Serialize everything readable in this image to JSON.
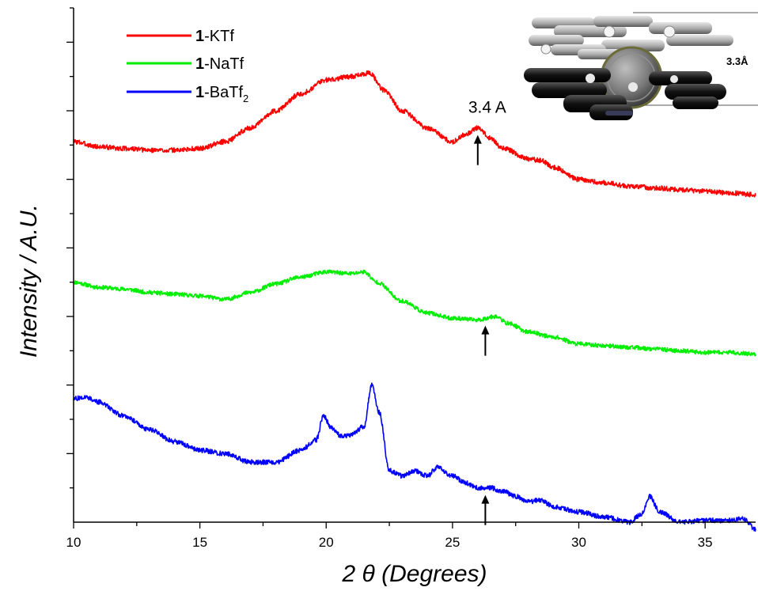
{
  "chart_data": {
    "type": "line",
    "xlabel_pre": "2 ",
    "xlabel_theta": "θ",
    "xlabel_post": " (Degrees)",
    "ylabel": "Intensity / A.U.",
    "xlim": [
      10,
      37
    ],
    "xticks": [
      10,
      15,
      20,
      25,
      30,
      35
    ],
    "x_minor_step": 2.5,
    "ylim": [
      0,
      15
    ],
    "y_major_step": 2,
    "y_minor_step": 1,
    "yticks_labeled": false,
    "grid": false,
    "legend_position": "top-left",
    "series": [
      {
        "key": "ktf",
        "bold": "1",
        "name_rest": "-KTf",
        "sub": "",
        "color": "#ff0000",
        "points": [
          [
            10,
            11.1
          ],
          [
            11,
            10.95
          ],
          [
            12,
            10.9
          ],
          [
            13,
            10.85
          ],
          [
            14,
            10.85
          ],
          [
            15,
            10.9
          ],
          [
            16,
            11.1
          ],
          [
            17,
            11.5
          ],
          [
            18,
            12.0
          ],
          [
            19,
            12.5
          ],
          [
            20,
            12.9
          ],
          [
            21,
            13.0
          ],
          [
            21.7,
            13.1
          ],
          [
            22.3,
            12.6
          ],
          [
            23,
            12.0
          ],
          [
            24,
            11.5
          ],
          [
            25,
            11.1
          ],
          [
            25.5,
            11.3
          ],
          [
            26,
            11.5
          ],
          [
            26.5,
            11.2
          ],
          [
            27,
            10.9
          ],
          [
            28,
            10.6
          ],
          [
            28.5,
            10.55
          ],
          [
            29,
            10.35
          ],
          [
            30,
            10.0
          ],
          [
            31,
            9.9
          ],
          [
            32,
            9.8
          ],
          [
            33,
            9.75
          ],
          [
            34,
            9.7
          ],
          [
            35,
            9.65
          ],
          [
            36,
            9.6
          ],
          [
            37,
            9.55
          ]
        ],
        "noise": 0.07,
        "seed": 3
      },
      {
        "key": "natf",
        "bold": "1",
        "name_rest": "-NaTf",
        "sub": "",
        "color": "#00ee00",
        "points": [
          [
            10,
            7.0
          ],
          [
            11,
            6.85
          ],
          [
            12,
            6.8
          ],
          [
            13,
            6.7
          ],
          [
            14,
            6.65
          ],
          [
            15,
            6.6
          ],
          [
            16,
            6.5
          ],
          [
            17,
            6.7
          ],
          [
            18,
            6.95
          ],
          [
            19,
            7.15
          ],
          [
            20,
            7.3
          ],
          [
            21,
            7.25
          ],
          [
            21.5,
            7.3
          ],
          [
            22,
            7.0
          ],
          [
            23,
            6.45
          ],
          [
            24,
            6.1
          ],
          [
            25,
            5.95
          ],
          [
            26,
            5.9
          ],
          [
            26.7,
            6.0
          ],
          [
            27.2,
            5.8
          ],
          [
            28,
            5.55
          ],
          [
            29,
            5.4
          ],
          [
            30,
            5.2
          ],
          [
            31,
            5.15
          ],
          [
            32,
            5.1
          ],
          [
            33,
            5.05
          ],
          [
            34,
            5.0
          ],
          [
            35,
            4.95
          ],
          [
            36,
            4.95
          ],
          [
            37,
            4.9
          ]
        ],
        "noise": 0.06,
        "seed": 11
      },
      {
        "key": "batf2",
        "bold": "1",
        "name_rest": "-BaTf",
        "sub": "2",
        "color": "#0000ff",
        "points": [
          [
            10,
            3.6
          ],
          [
            10.5,
            3.65
          ],
          [
            11,
            3.5
          ],
          [
            12,
            3.1
          ],
          [
            13,
            2.7
          ],
          [
            14,
            2.35
          ],
          [
            15,
            2.1
          ],
          [
            16,
            2.0
          ],
          [
            17,
            1.75
          ],
          [
            18,
            1.75
          ],
          [
            19,
            2.1
          ],
          [
            19.6,
            2.4
          ],
          [
            19.9,
            3.1
          ],
          [
            20.2,
            2.75
          ],
          [
            20.6,
            2.5
          ],
          [
            21,
            2.55
          ],
          [
            21.5,
            2.8
          ],
          [
            21.8,
            4.0
          ],
          [
            22.1,
            3.2
          ],
          [
            22.5,
            1.5
          ],
          [
            23,
            1.35
          ],
          [
            23.5,
            1.5
          ],
          [
            24,
            1.35
          ],
          [
            24.4,
            1.6
          ],
          [
            25,
            1.35
          ],
          [
            25.5,
            1.15
          ],
          [
            26,
            1.0
          ],
          [
            26.5,
            1.0
          ],
          [
            27,
            0.9
          ],
          [
            27.5,
            0.75
          ],
          [
            28,
            0.6
          ],
          [
            28.5,
            0.65
          ],
          [
            29,
            0.45
          ],
          [
            30,
            0.3
          ],
          [
            31,
            0.15
          ],
          [
            32,
            0.0
          ],
          [
            32.5,
            0.25
          ],
          [
            32.8,
            0.75
          ],
          [
            33.2,
            0.3
          ],
          [
            34,
            0.0
          ],
          [
            35,
            0.05
          ],
          [
            36,
            0.05
          ],
          [
            36.5,
            0.1
          ],
          [
            37,
            -0.2
          ]
        ],
        "noise": 0.07,
        "seed": 27
      }
    ],
    "annotations": [
      {
        "text": "3.4 A",
        "x": 26.0
      }
    ],
    "arrows": [
      {
        "series": "ktf",
        "x": 26.0
      },
      {
        "series": "natf",
        "x": 26.3
      },
      {
        "series": "batf2",
        "x": 26.3
      }
    ],
    "inset": {
      "label": "3.3Å"
    }
  }
}
